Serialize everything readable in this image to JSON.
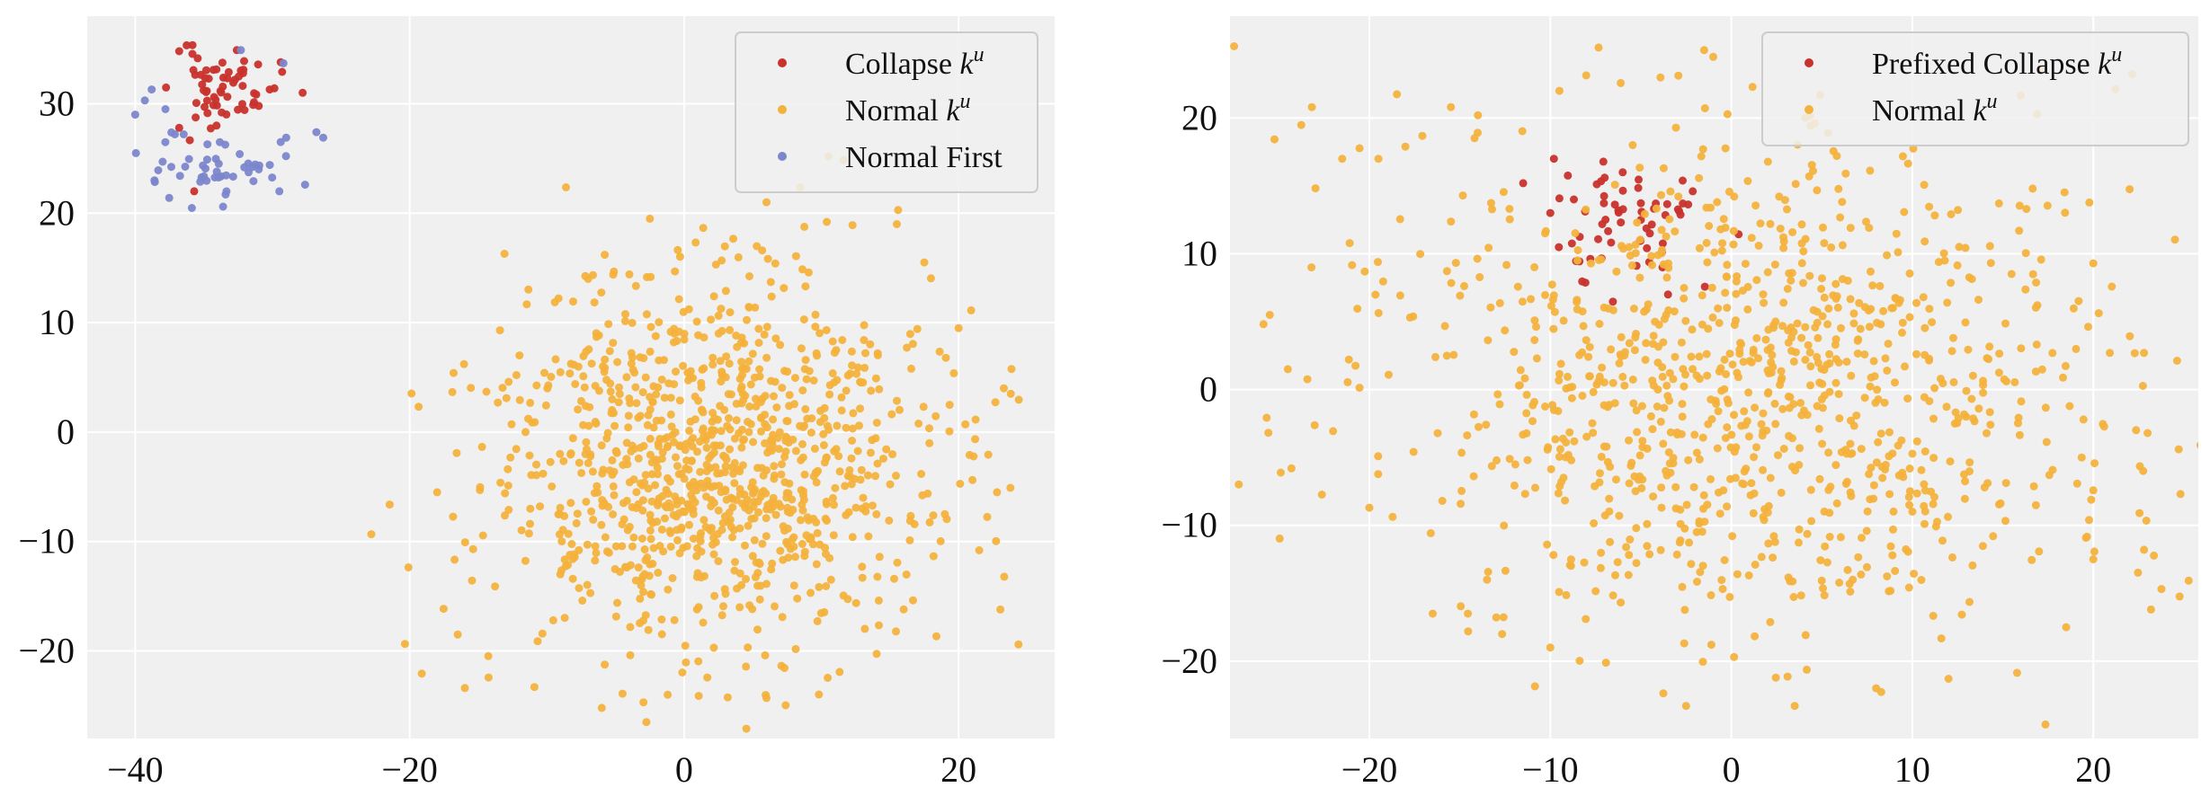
{
  "chart_data": [
    {
      "type": "scatter",
      "title": "",
      "xlabel": "",
      "ylabel": "",
      "xlim": [
        -43.5,
        27
      ],
      "ylim": [
        -28,
        38
      ],
      "x_ticks": [
        -40,
        -20,
        0,
        20
      ],
      "y_ticks": [
        -20,
        -10,
        0,
        10,
        20,
        30
      ],
      "x_tick_labels": [
        "−40",
        "−20",
        "0",
        "20"
      ],
      "y_tick_labels": [
        "−20",
        "−10",
        "0",
        "10",
        "20",
        "30"
      ],
      "grid": true,
      "background": "#f0f0f0",
      "legend_position": "top-right",
      "series": [
        {
          "name": "Collapse k^u",
          "legend_text": "Collapse ",
          "legend_math": "k",
          "legend_sup": "u",
          "color": "#c8312c",
          "cluster": {
            "center": [
              -33.5,
              31.5
            ],
            "spread": [
              1.8,
              1.7
            ],
            "count": 55,
            "seed": 11
          },
          "points": [
            [
              -36.8,
              34.8
            ],
            [
              -32.6,
              34.9
            ],
            [
              -29.4,
              33.8
            ],
            [
              -27.8,
              31.0
            ],
            [
              -36.8,
              27.8
            ],
            [
              -35.7,
              22.0
            ],
            [
              -33.7,
              29.2
            ],
            [
              -31.0,
              29.8
            ],
            [
              -30.2,
              31.3
            ],
            [
              -34.3,
              33.1
            ]
          ]
        },
        {
          "name": "Normal k^u",
          "legend_text": "Normal ",
          "legend_math": "k",
          "legend_sup": "u",
          "color": "#f3b23d",
          "cluster": {
            "center": [
              1.5,
              -3.0
            ],
            "spread": [
              8.0,
              8.5
            ],
            "count": 1050,
            "seed": 23
          },
          "points": [
            [
              -18.0,
              -5.5
            ],
            [
              -16.8,
              5.4
            ],
            [
              -6.0,
              -25.2
            ],
            [
              -1.2,
              -24.0
            ],
            [
              6.0,
              -24.3
            ],
            [
              -2.5,
              19.5
            ],
            [
              6.0,
              21.0
            ],
            [
              10.4,
              19.2
            ],
            [
              15.5,
              19.0
            ],
            [
              17.5,
              15.5
            ],
            [
              20.0,
              9.5
            ],
            [
              23.3,
              4.0
            ],
            [
              23.8,
              3.5
            ],
            [
              22.8,
              -5.5
            ],
            [
              21.5,
              -10.8
            ],
            [
              19.0,
              -7.5
            ],
            [
              16.0,
              -16.2
            ],
            [
              -7.0,
              14.0
            ],
            [
              -16.5,
              -18.5
            ],
            [
              -12.0,
              7.0
            ]
          ]
        },
        {
          "name": "Normal First",
          "legend_text": "Normal First",
          "legend_math": "",
          "legend_sup": "",
          "color": "#7b86cc",
          "cluster": {
            "center": [
              -34.0,
              24.5
            ],
            "spread": [
              2.2,
              1.6
            ],
            "count": 45,
            "seed": 37
          },
          "points": [
            [
              -40.0,
              29.0
            ],
            [
              -39.3,
              30.3
            ],
            [
              -38.8,
              31.3
            ],
            [
              -37.8,
              29.5
            ],
            [
              -32.3,
              34.9
            ],
            [
              -29.2,
              33.7
            ],
            [
              -26.8,
              27.4
            ],
            [
              -26.3,
              26.9
            ],
            [
              -29.4,
              26.5
            ],
            [
              -29.0,
              26.9
            ],
            [
              -29.5,
              22.0
            ],
            [
              -31.0,
              24.0
            ],
            [
              -33.6,
              20.6
            ],
            [
              -38.0,
              24.7
            ],
            [
              -38.6,
              23.0
            ]
          ]
        }
      ]
    },
    {
      "type": "scatter",
      "title": "",
      "xlabel": "",
      "ylabel": "",
      "xlim": [
        -27.7,
        25.8
      ],
      "ylim": [
        -25.7,
        27.5
      ],
      "x_ticks": [
        -20,
        -10,
        0,
        10,
        20
      ],
      "y_ticks": [
        -20,
        -10,
        0,
        10,
        20
      ],
      "x_tick_labels": [
        "−20",
        "−10",
        "0",
        "10",
        "20"
      ],
      "y_tick_labels": [
        "−20",
        "−10",
        "0",
        "10",
        "20"
      ],
      "grid": true,
      "background": "#f0f0f0",
      "legend_position": "top-right",
      "series": [
        {
          "name": "Prefixed Collapse k^u",
          "legend_text": "Prefixed Collapse ",
          "legend_math": "k",
          "legend_sup": "u",
          "color": "#c8312c",
          "cluster": {
            "center": [
              -6.0,
              12.0
            ],
            "spread": [
              2.2,
              2.3
            ],
            "count": 55,
            "seed": 51
          },
          "points": [
            [
              -11.5,
              15.2
            ],
            [
              -9.8,
              17.0
            ],
            [
              -8.7,
              14.0
            ],
            [
              -7.0,
              15.6
            ],
            [
              -5.0,
              12.5
            ],
            [
              -4.5,
              11.5
            ],
            [
              -3.8,
              9.0
            ],
            [
              -3.5,
              7.0
            ],
            [
              -10.0,
              13.0
            ],
            [
              -6.0,
              16.0
            ]
          ]
        },
        {
          "name": "Normal k^u",
          "legend_text": "Normal ",
          "legend_math": "k",
          "legend_sup": "u",
          "color": "#f3b23d",
          "cluster": {
            "center": [
              2.0,
              0.0
            ],
            "spread": [
              10.5,
              9.0
            ],
            "count": 1050,
            "seed": 63
          },
          "points": [
            [
              -25.5,
              5.5
            ],
            [
              -24.5,
              1.5
            ],
            [
              -24.3,
              -5.8
            ],
            [
              -23.2,
              9.0
            ],
            [
              -21.5,
              17.0
            ],
            [
              -19.5,
              17.0
            ],
            [
              -20.0,
              -8.7
            ],
            [
              -16.5,
              -16.5
            ],
            [
              -10.0,
              -19.0
            ],
            [
              -13.5,
              -14.0
            ],
            [
              -2.5,
              -23.3
            ],
            [
              3.5,
              -23.3
            ],
            [
              8.0,
              -22.0
            ],
            [
              12.0,
              -21.3
            ],
            [
              18.5,
              -17.5
            ],
            [
              20.0,
              -12.5
            ],
            [
              22.8,
              -11.8
            ],
            [
              23.0,
              -3.2
            ],
            [
              22.8,
              2.7
            ],
            [
              20.0,
              9.3
            ],
            [
              16.3,
              13.3
            ],
            [
              -1.5,
              25.0
            ],
            [
              -1.0,
              24.5
            ],
            [
              -9.5,
              22.0
            ],
            [
              -14.0,
              20.2
            ]
          ]
        }
      ]
    }
  ]
}
